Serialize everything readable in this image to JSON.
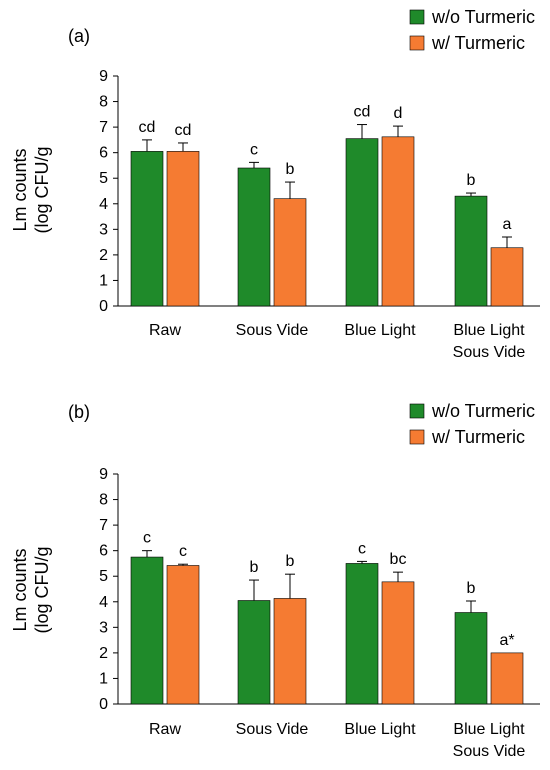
{
  "colors": {
    "without": "#1f8a2a",
    "with": "#f57b32",
    "axis": "#000000"
  },
  "chart_data": [
    {
      "type": "bar",
      "panel_label": "(a)",
      "ylabel_line1": "Lm counts",
      "ylabel_line2": "(log CFU/g",
      "ylim": [
        0,
        9
      ],
      "yticks": [
        "0",
        "1",
        "2",
        "3",
        "4",
        "5",
        "6",
        "7",
        "8",
        "9"
      ],
      "categories": [
        [
          "Raw"
        ],
        [
          "Sous Vide"
        ],
        [
          "Blue Light"
        ],
        [
          "Blue Light",
          "Sous Vide"
        ]
      ],
      "legend": [
        "w/o Turmeric",
        "w/ Turmeric"
      ],
      "series": [
        {
          "name": "w/o Turmeric",
          "values": [
            6.05,
            5.4,
            6.55,
            4.3
          ],
          "errors": [
            0.45,
            0.22,
            0.55,
            0.12
          ],
          "labels": [
            "cd",
            "c",
            "cd",
            "b"
          ]
        },
        {
          "name": "w/ Turmeric",
          "values": [
            6.05,
            4.2,
            6.62,
            2.28
          ],
          "errors": [
            0.33,
            0.65,
            0.42,
            0.42
          ],
          "labels": [
            "cd",
            "b",
            "d",
            "a"
          ]
        }
      ]
    },
    {
      "type": "bar",
      "panel_label": "(b)",
      "ylabel_line1": "Lm counts",
      "ylabel_line2": "(log CFU/g",
      "ylim": [
        0,
        9
      ],
      "yticks": [
        "0",
        "1",
        "2",
        "3",
        "4",
        "5",
        "6",
        "7",
        "8",
        "9"
      ],
      "categories": [
        [
          "Raw"
        ],
        [
          "Sous Vide"
        ],
        [
          "Blue Light"
        ],
        [
          "Blue Light",
          "Sous Vide"
        ]
      ],
      "legend": [
        "w/o Turmeric",
        "w/ Turmeric"
      ],
      "series": [
        {
          "name": "w/o Turmeric",
          "values": [
            5.75,
            4.05,
            5.5,
            3.58
          ],
          "errors": [
            0.25,
            0.8,
            0.08,
            0.45
          ],
          "labels": [
            "c",
            "b",
            "c",
            "b"
          ]
        },
        {
          "name": "w/ Turmeric",
          "values": [
            5.42,
            4.13,
            4.78,
            2.0
          ],
          "errors": [
            0.05,
            0.95,
            0.38,
            0.0
          ],
          "labels": [
            "c",
            "b",
            "bc",
            "a*"
          ]
        }
      ]
    }
  ]
}
